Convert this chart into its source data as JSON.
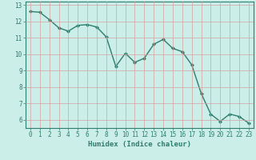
{
  "xlabel": "Humidex (Indice chaleur)",
  "x": [
    0,
    1,
    2,
    3,
    4,
    5,
    6,
    7,
    8,
    9,
    10,
    11,
    12,
    13,
    14,
    15,
    16,
    17,
    18,
    19,
    20,
    21,
    22,
    23
  ],
  "y": [
    12.6,
    12.55,
    12.1,
    11.6,
    11.4,
    11.75,
    11.8,
    11.65,
    11.05,
    9.25,
    10.05,
    9.5,
    9.75,
    10.6,
    10.9,
    10.35,
    10.15,
    9.35,
    7.6,
    6.35,
    5.9,
    6.35,
    6.2,
    5.8
  ],
  "line_color": "#2e7d6e",
  "marker": "D",
  "marker_size": 2.0,
  "line_width": 1.0,
  "background_color": "#cceee8",
  "grid_color": "#d4a0a0",
  "ylim": [
    5.5,
    13.2
  ],
  "xlim": [
    -0.5,
    23.5
  ],
  "yticks": [
    6,
    7,
    8,
    9,
    10,
    11,
    12,
    13
  ],
  "xticks": [
    0,
    1,
    2,
    3,
    4,
    5,
    6,
    7,
    8,
    9,
    10,
    11,
    12,
    13,
    14,
    15,
    16,
    17,
    18,
    19,
    20,
    21,
    22,
    23
  ],
  "tick_fontsize": 5.5,
  "xlabel_fontsize": 6.5,
  "spine_color": "#2e7d6e",
  "tick_color": "#2e7d6e"
}
